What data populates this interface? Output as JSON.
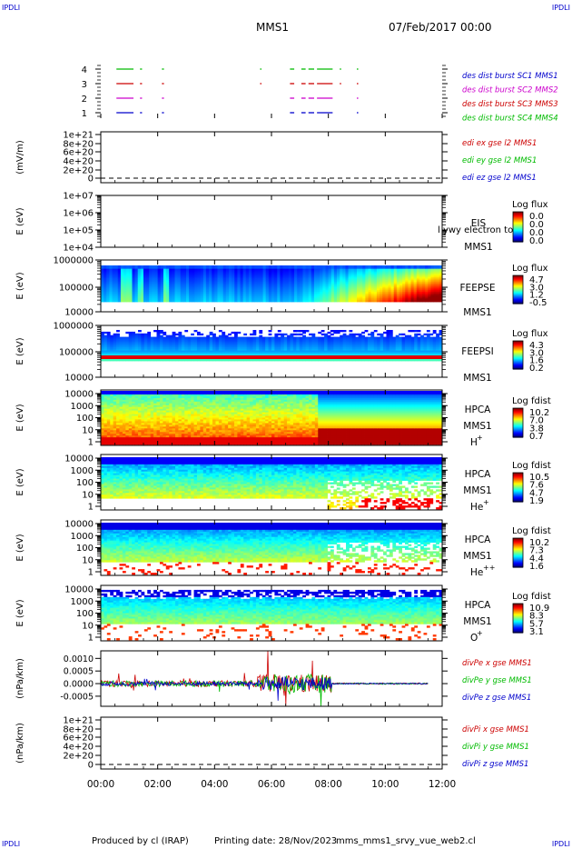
{
  "corners": {
    "tl": "IPDLI",
    "tr": "IPDLI",
    "bl": "IPDLI",
    "br": "IPDLI"
  },
  "header": {
    "title": "MMS1",
    "datetime": "07/Feb/2017 00:00"
  },
  "footer": {
    "produced": "Produced by cl (IRAP)",
    "printing": "Printing date: 28/Nov/2023",
    "file": "mms_mms1_srvy_vue_web2.cl"
  },
  "chart_data": [
    {
      "type": "line",
      "id": "burst",
      "ylabels": [
        "4",
        "3",
        "2",
        "1"
      ],
      "legend": [
        {
          "text": "des dist burst SC1 MMS1",
          "color": "#0000cc"
        },
        {
          "text": "des dist burst SC2 MMS2",
          "color": "#cc00cc"
        },
        {
          "text": "des dist burst SC3 MMS3",
          "color": "#cc0000"
        },
        {
          "text": "des dist burst SC4 MMS4",
          "color": "#00bb00"
        }
      ],
      "series": [
        {
          "level": 4,
          "color": "#00bb00",
          "intervals": [
            [
              0.55,
              1.15
            ],
            [
              1.38,
              1.45
            ],
            [
              2.15,
              2.22
            ],
            [
              5.6,
              5.65
            ],
            [
              6.65,
              6.8
            ],
            [
              7.05,
              7.2
            ],
            [
              7.3,
              7.5
            ],
            [
              7.6,
              8.15
            ],
            [
              8.4,
              8.45
            ],
            [
              9.0,
              9.05
            ]
          ]
        },
        {
          "level": 3,
          "color": "#cc0000",
          "intervals": [
            [
              0.55,
              1.15
            ],
            [
              1.38,
              1.45
            ],
            [
              2.15,
              2.22
            ],
            [
              5.6,
              5.65
            ],
            [
              6.65,
              6.8
            ],
            [
              7.05,
              7.2
            ],
            [
              7.3,
              7.5
            ],
            [
              7.6,
              8.15
            ],
            [
              8.4,
              8.45
            ],
            [
              9.0,
              9.05
            ]
          ]
        },
        {
          "level": 2,
          "color": "#cc00cc",
          "intervals": [
            [
              0.55,
              1.15
            ],
            [
              1.38,
              1.45
            ],
            [
              2.15,
              2.22
            ],
            [
              6.65,
              6.8
            ],
            [
              7.05,
              7.2
            ],
            [
              7.3,
              7.5
            ],
            [
              7.6,
              8.15
            ],
            [
              9.0,
              9.05
            ]
          ]
        },
        {
          "level": 1,
          "color": "#0000cc",
          "intervals": [
            [
              0.55,
              1.15
            ],
            [
              1.38,
              1.45
            ],
            [
              2.15,
              2.22
            ],
            [
              6.65,
              6.8
            ],
            [
              7.05,
              7.2
            ],
            [
              7.3,
              7.5
            ],
            [
              7.6,
              8.15
            ],
            [
              9.0,
              9.05
            ]
          ]
        }
      ]
    },
    {
      "type": "line",
      "id": "edi",
      "ylabel": "(mV/m)",
      "yticks": [
        "1e+21",
        "8e+20",
        "6e+20",
        "4e+20",
        "2e+20",
        "0"
      ],
      "legend": [
        {
          "text": "edi ex gse l2 MMS1",
          "color": "#cc0000"
        },
        {
          "text": "edi ey gse l2 MMS1",
          "color": "#00bb00"
        },
        {
          "text": "edi ez gse l2 MMS1",
          "color": "#0000cc"
        }
      ],
      "note": "no data; dashed zero line"
    },
    {
      "type": "heatmap",
      "id": "eis",
      "ylabel": "E (eV)",
      "yticks": [
        "1e+07",
        "1e+06",
        "1e+05",
        "1e+04"
      ],
      "log": true,
      "labels": [
        "EIS",
        "MMS1"
      ],
      "overlay": "l ywy electron to",
      "cbar": {
        "title": "Log flux",
        "ticks": [
          "0.0",
          "0.0",
          "0.0",
          "0.0"
        ]
      },
      "note": "no data"
    },
    {
      "type": "heatmap",
      "id": "feepse",
      "ylabel": "E (eV)",
      "yticks": [
        "1000000",
        "100000",
        "10000"
      ],
      "log": true,
      "labels": [
        "FEEPSE",
        "MMS1"
      ],
      "cbar": {
        "title": "Log flux",
        "ticks": [
          "4.7",
          "3.0",
          "1.2",
          "-0.5"
        ]
      }
    },
    {
      "type": "heatmap",
      "id": "feepsi",
      "ylabel": "E (eV)",
      "yticks": [
        "1000000",
        "100000",
        "10000"
      ],
      "log": true,
      "labels": [
        "FEEPSI",
        "MMS1"
      ],
      "cbar": {
        "title": "Log flux",
        "ticks": [
          "4.3",
          "3.0",
          "1.6",
          "0.2"
        ]
      }
    },
    {
      "type": "heatmap",
      "id": "hpca_h",
      "ylabel": "E (eV)",
      "yticks": [
        "10000",
        "1000",
        "100",
        "10",
        "1"
      ],
      "log": true,
      "labels": [
        "HPCA",
        "MMS1"
      ],
      "species": "H",
      "sup": "+",
      "cbar": {
        "title": "Log fdist",
        "ticks": [
          "10.2",
          "7.0",
          "3.8",
          "0.7"
        ]
      }
    },
    {
      "type": "heatmap",
      "id": "hpca_he",
      "ylabel": "E (eV)",
      "yticks": [
        "10000",
        "1000",
        "100",
        "10",
        "1"
      ],
      "log": true,
      "labels": [
        "HPCA",
        "MMS1"
      ],
      "species": "He",
      "sup": "+",
      "cbar": {
        "title": "Log fdist",
        "ticks": [
          "10.5",
          "7.6",
          "4.7",
          "1.9"
        ]
      }
    },
    {
      "type": "heatmap",
      "id": "hpca_he2",
      "ylabel": "E (eV)",
      "yticks": [
        "10000",
        "1000",
        "100",
        "10",
        "1"
      ],
      "log": true,
      "labels": [
        "HPCA",
        "MMS1"
      ],
      "species": "He",
      "sup": "++",
      "cbar": {
        "title": "Log fdist",
        "ticks": [
          "10.2",
          "7.3",
          "4.4",
          "1.6"
        ]
      }
    },
    {
      "type": "heatmap",
      "id": "hpca_o",
      "ylabel": "E (eV)",
      "yticks": [
        "10000",
        "1000",
        "100",
        "10",
        "1"
      ],
      "log": true,
      "labels": [
        "HPCA",
        "MMS1"
      ],
      "species": "O",
      "sup": "+",
      "cbar": {
        "title": "Log fdist",
        "ticks": [
          "10.9",
          "8.3",
          "5.7",
          "3.1"
        ]
      }
    },
    {
      "type": "line",
      "id": "divpe",
      "ylabel": "(nPa/km)",
      "yticks": [
        "0.0010",
        "0.0005",
        "0.0000",
        "-0.0005"
      ],
      "ylim": [
        -0.0009,
        0.0013
      ],
      "legend": [
        {
          "text": "divPe x gse MMS1",
          "color": "#cc0000"
        },
        {
          "text": "divPe y gse MMS1",
          "color": "#00bb00"
        },
        {
          "text": "divPe z gse MMS1",
          "color": "#0000cc"
        }
      ]
    },
    {
      "type": "line",
      "id": "divpi",
      "ylabel": "(nPa/km)",
      "yticks": [
        "1e+21",
        "8e+20",
        "6e+20",
        "4e+20",
        "2e+20",
        "0"
      ],
      "legend": [
        {
          "text": "divPi x gse MMS1",
          "color": "#cc0000"
        },
        {
          "text": "divPi y gse MMS1",
          "color": "#00bb00"
        },
        {
          "text": "divPi z gse MMS1",
          "color": "#0000cc"
        }
      ],
      "note": "no data; dashed zero line"
    }
  ],
  "xaxis": {
    "ticks": [
      "00:00",
      "02:00",
      "04:00",
      "06:00",
      "08:00",
      "10:00",
      "12:00"
    ],
    "range_hours": [
      0,
      12
    ]
  }
}
